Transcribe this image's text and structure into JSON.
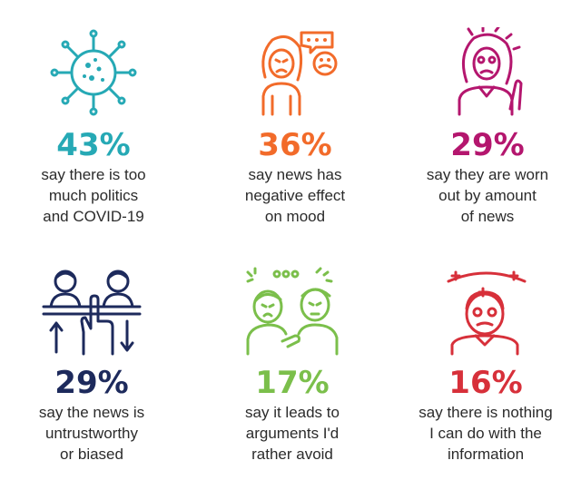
{
  "colors": {
    "teal": "#26a9b5",
    "orange": "#f26b2a",
    "magenta": "#b4166e",
    "navy": "#1d2a5c",
    "green": "#7bbf4b",
    "red": "#d7303a",
    "text": "#2b2b2b"
  },
  "stats": [
    {
      "icon": "virus-icon",
      "percent": "43%",
      "lines": [
        "say there is too",
        "much politics",
        "and COVID-19"
      ]
    },
    {
      "icon": "upset-person-speech-bubble-icon",
      "percent": "36%",
      "lines": [
        "say news has",
        "negative effect",
        "on mood"
      ]
    },
    {
      "icon": "exhausted-person-icon",
      "percent": "29%",
      "lines": [
        "say they are worn",
        "out by amount",
        "of news"
      ]
    },
    {
      "icon": "people-thumbs-up-down-icon",
      "percent": "29%",
      "lines": [
        "say the news is",
        "untrustworthy",
        "or biased"
      ]
    },
    {
      "icon": "arguing-people-icon",
      "percent": "17%",
      "lines": [
        "say it leads to",
        "arguments I'd",
        "rather avoid"
      ]
    },
    {
      "icon": "dizzy-person-icon",
      "percent": "16%",
      "lines": [
        "say there is nothing",
        "I can do with the",
        "information"
      ]
    }
  ]
}
